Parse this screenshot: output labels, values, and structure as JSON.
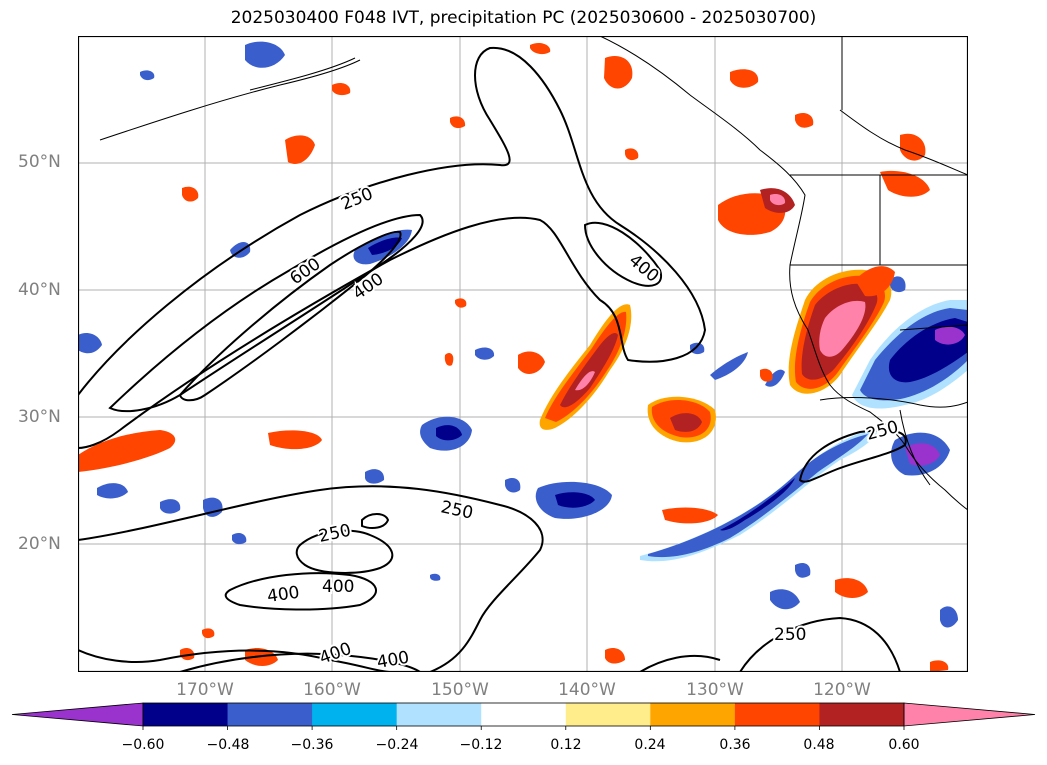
{
  "title": "2025030400 F048 IVT, precipitation PC (2025030600 - 2025030700)",
  "map": {
    "lat_labels": [
      "50°N",
      "40°N",
      "30°N",
      "20°N"
    ],
    "lon_labels": [
      "170°W",
      "160°W",
      "150°W",
      "140°W",
      "130°W",
      "120°W"
    ],
    "contour_labels": [
      "250",
      "600",
      "400",
      "400",
      "250",
      "250",
      "400",
      "400",
      "400",
      "400",
      "250",
      "250"
    ],
    "colors": {
      "contour": "#000000",
      "grid": "#b0b0b0",
      "coast": "#000000"
    }
  },
  "colorbar": {
    "ticks": [
      "−0.60",
      "−0.48",
      "−0.36",
      "−0.24",
      "−0.12",
      "0.12",
      "0.24",
      "0.36",
      "0.48",
      "0.60"
    ],
    "colors": [
      "#9a32cd",
      "#00008b",
      "#3a5fcd",
      "#00b2ee",
      "#b0e2ff",
      "#ffffff",
      "#ffec8b",
      "#ffa500",
      "#ff4500",
      "#b22222",
      "#ff82ab"
    ]
  }
}
